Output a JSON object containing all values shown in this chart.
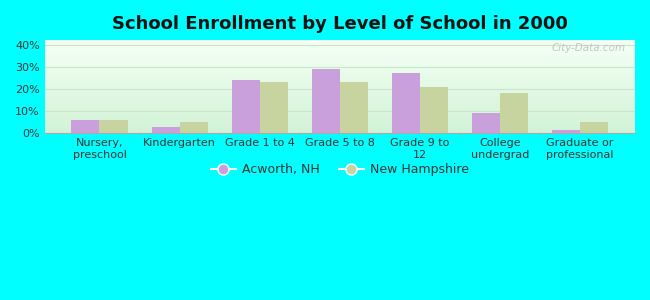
{
  "title": "School Enrollment by Level of School in 2000",
  "categories": [
    "Nursery,\npreschool",
    "Kindergarten",
    "Grade 1 to 4",
    "Grade 5 to 8",
    "Grade 9 to\n12",
    "College\nundergrad",
    "Graduate or\nprofessional"
  ],
  "acworth_values": [
    6.0,
    3.0,
    24.0,
    29.0,
    27.0,
    9.0,
    1.5
  ],
  "nh_values": [
    6.2,
    5.0,
    23.0,
    23.0,
    21.0,
    18.0,
    5.0
  ],
  "acworth_color": "#c9a0dc",
  "nh_color": "#c8d4a0",
  "background_color": "#00ffff",
  "ylim": [
    0,
    42
  ],
  "yticks": [
    0,
    10,
    20,
    30,
    40
  ],
  "ytick_labels": [
    "0%",
    "10%",
    "20%",
    "30%",
    "40%"
  ],
  "legend_labels": [
    "Acworth, NH",
    "New Hampshire"
  ],
  "bar_width": 0.35,
  "title_fontsize": 13,
  "tick_fontsize": 8,
  "legend_fontsize": 9,
  "watermark": "City-Data.com",
  "grid_color": "#c8e6c8",
  "separator_color": "#aaaaaa"
}
